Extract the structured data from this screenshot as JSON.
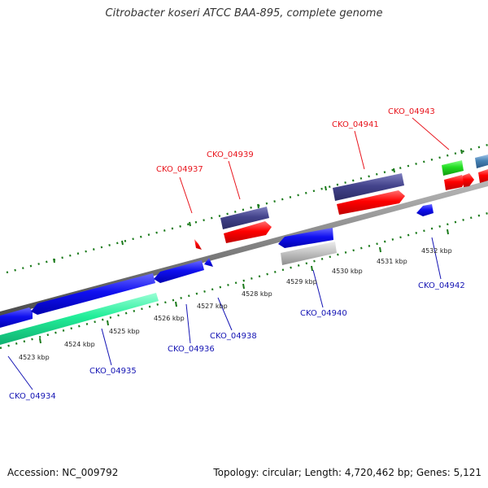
{
  "title": "Citrobacter koseri ATCC BAA-895, complete genome",
  "footer": {
    "accession": "Accession: NC_009792",
    "summary": "Topology: circular; Length: 4,720,462 bp; Genes: 5,121"
  },
  "axis": {
    "kbp_labels": [
      "4523 kbp",
      "4524 kbp",
      "4525 kbp",
      "4526 kbp",
      "4527 kbp",
      "4528 kbp",
      "4529 kbp",
      "4530 kbp",
      "4531 kbp",
      "4532 kbp"
    ]
  },
  "colors": {
    "backbone": "#7f7f7f",
    "forward_gene": "#ff0000",
    "reverse_gene": "#0000ee",
    "purple_feature": "#44448c",
    "green_feature": "#22dd22",
    "teal_feature": "#22ee99",
    "gray_feature": "#bbbbbb",
    "steelblue_feature": "#4682b4",
    "tick": "#1a7a1a",
    "top_label": "#e8141c",
    "bottom_label": "#1414b4"
  },
  "genes_top": [
    {
      "id": "CKO_04937"
    },
    {
      "id": "CKO_04939"
    },
    {
      "id": "CKO_04941"
    },
    {
      "id": "CKO_04943"
    }
  ],
  "genes_bottom": [
    {
      "id": "CKO_04934"
    },
    {
      "id": "CKO_04935"
    },
    {
      "id": "CKO_04936"
    },
    {
      "id": "CKO_04938"
    },
    {
      "id": "CKO_04940"
    },
    {
      "id": "CKO_04942"
    }
  ]
}
